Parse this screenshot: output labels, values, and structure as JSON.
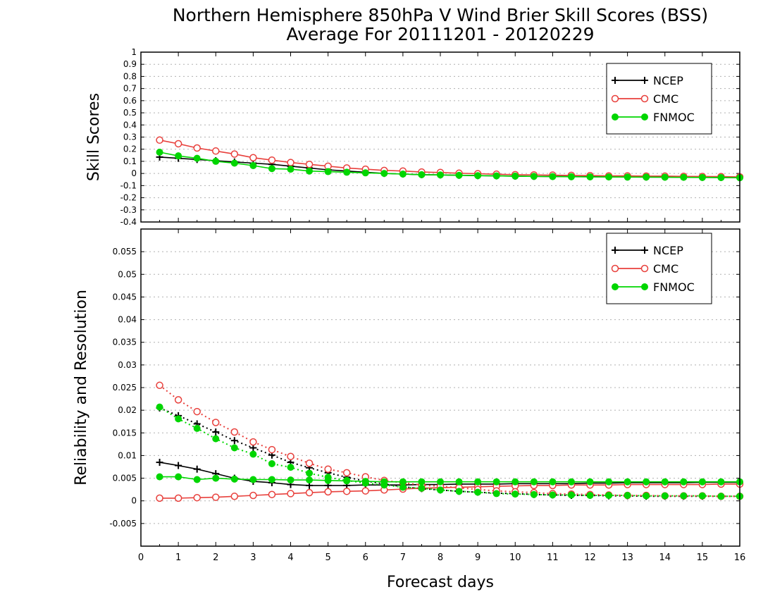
{
  "title_line1": "Northern Hemisphere 850hPa V Wind Brier Skill Scores (BSS)",
  "title_line2": "Average For 20111201 - 20120229",
  "xlabel": "Forecast days",
  "colors": {
    "NCEP": "#000000",
    "CMC": "#e8403c",
    "FNMOC": "#00d600",
    "grid": "#b0b0b0"
  },
  "chart_data": [
    {
      "type": "line",
      "ylabel": "Skill Scores",
      "xlim": [
        0,
        16
      ],
      "ylim": [
        -0.4,
        1
      ],
      "x_ticks": [
        0,
        1,
        2,
        3,
        4,
        5,
        6,
        7,
        8,
        9,
        10,
        11,
        12,
        13,
        14,
        15,
        16
      ],
      "y_ticks": [
        "-0.4",
        "-0.3",
        "-0.2",
        "-0.1",
        "0",
        "0.1",
        "0.2",
        "0.3",
        "0.4",
        "0.5",
        "0.6",
        "0.7",
        "0.8",
        "0.9",
        "1"
      ],
      "grid": true,
      "legend_position": "top-right",
      "x": [
        0.5,
        1,
        1.5,
        2,
        2.5,
        3,
        3.5,
        4,
        4.5,
        5,
        5.5,
        6,
        6.5,
        7,
        7.5,
        8,
        8.5,
        9,
        9.5,
        10,
        10.5,
        11,
        11.5,
        12,
        12.5,
        13,
        13.5,
        14,
        14.5,
        15,
        15.5,
        16
      ],
      "series": [
        {
          "name": "NCEP",
          "marker": "plus",
          "style": "solid",
          "values": [
            0.135,
            0.125,
            0.115,
            0.105,
            0.095,
            0.085,
            0.075,
            0.06,
            0.045,
            0.03,
            0.02,
            0.01,
            0.0,
            -0.005,
            -0.01,
            -0.012,
            -0.015,
            -0.018,
            -0.02,
            -0.022,
            -0.024,
            -0.025,
            -0.026,
            -0.027,
            -0.028,
            -0.029,
            -0.03,
            -0.03,
            -0.031,
            -0.032,
            -0.033,
            -0.034
          ]
        },
        {
          "name": "CMC",
          "marker": "circle-open",
          "style": "solid",
          "values": [
            0.275,
            0.245,
            0.21,
            0.185,
            0.16,
            0.13,
            0.11,
            0.09,
            0.075,
            0.06,
            0.045,
            0.035,
            0.025,
            0.02,
            0.012,
            0.008,
            0.002,
            -0.002,
            -0.006,
            -0.01,
            -0.012,
            -0.014,
            -0.016,
            -0.018,
            -0.02,
            -0.02,
            -0.022,
            -0.022,
            -0.024,
            -0.025,
            -0.026,
            -0.028
          ]
        },
        {
          "name": "FNMOC",
          "marker": "circle-filled",
          "style": "solid",
          "values": [
            0.175,
            0.145,
            0.125,
            0.1,
            0.085,
            0.065,
            0.04,
            0.035,
            0.02,
            0.015,
            0.01,
            0.005,
            0.0,
            -0.005,
            -0.01,
            -0.012,
            -0.015,
            -0.018,
            -0.02,
            -0.022,
            -0.024,
            -0.026,
            -0.027,
            -0.028,
            -0.029,
            -0.03,
            -0.03,
            -0.031,
            -0.032,
            -0.033,
            -0.034,
            -0.035
          ]
        }
      ]
    },
    {
      "type": "line",
      "ylabel": "Reliability and Resolution",
      "xlim": [
        0,
        16
      ],
      "ylim": [
        -0.01,
        0.06
      ],
      "x_ticks": [
        0,
        1,
        2,
        3,
        4,
        5,
        6,
        7,
        8,
        9,
        10,
        11,
        12,
        13,
        14,
        15,
        16
      ],
      "y_ticks": [
        "-0.005",
        "0",
        "0.005",
        "0.01",
        "0.015",
        "0.02",
        "0.025",
        "0.03",
        "0.035",
        "0.04",
        "0.045",
        "0.05",
        "0.055"
      ],
      "grid": true,
      "legend_position": "top-right",
      "x": [
        0.5,
        1,
        1.5,
        2,
        2.5,
        3,
        3.5,
        4,
        4.5,
        5,
        5.5,
        6,
        6.5,
        7,
        7.5,
        8,
        8.5,
        9,
        9.5,
        10,
        10.5,
        11,
        11.5,
        12,
        12.5,
        13,
        13.5,
        14,
        14.5,
        15,
        15.5,
        16
      ],
      "series": [
        {
          "name": "NCEP",
          "marker": "plus",
          "style": "solid",
          "values": [
            0.0085,
            0.0078,
            0.007,
            0.006,
            0.005,
            0.0043,
            0.004,
            0.0036,
            0.0034,
            0.0034,
            0.0034,
            0.0035,
            0.0035,
            0.0035,
            0.0036,
            0.0036,
            0.0037,
            0.0037,
            0.0037,
            0.0038,
            0.0038,
            0.0038,
            0.0038,
            0.0039,
            0.0039,
            0.004,
            0.004,
            0.004,
            0.004,
            0.0041,
            0.0041,
            0.0041
          ]
        },
        {
          "name": "NCEP",
          "marker": "plus",
          "style": "dotted",
          "values": [
            0.0205,
            0.0188,
            0.017,
            0.0152,
            0.0133,
            0.0117,
            0.0101,
            0.0085,
            0.0073,
            0.0062,
            0.0052,
            0.0044,
            0.0037,
            0.0031,
            0.0027,
            0.0024,
            0.0021,
            0.0019,
            0.0017,
            0.0016,
            0.0014,
            0.0013,
            0.0012,
            0.0012,
            0.0011,
            0.0011,
            0.001,
            0.001,
            0.001,
            0.001,
            0.001,
            0.001
          ]
        },
        {
          "name": "CMC",
          "marker": "circle-open",
          "style": "solid",
          "values": [
            0.0006,
            0.0006,
            0.0007,
            0.0008,
            0.001,
            0.0012,
            0.0014,
            0.0016,
            0.0018,
            0.002,
            0.0021,
            0.0022,
            0.0024,
            0.0026,
            0.0028,
            0.0029,
            0.003,
            0.0031,
            0.0032,
            0.0033,
            0.0034,
            0.0034,
            0.0035,
            0.0035,
            0.0035,
            0.0036,
            0.0036,
            0.0036,
            0.0036,
            0.0036,
            0.0037,
            0.0037
          ]
        },
        {
          "name": "CMC",
          "marker": "circle-open",
          "style": "dotted",
          "values": [
            0.0255,
            0.0223,
            0.0197,
            0.0173,
            0.0152,
            0.013,
            0.0113,
            0.0098,
            0.0083,
            0.007,
            0.0062,
            0.0053,
            0.0045,
            0.004,
            0.0035,
            0.0032,
            0.0029,
            0.0025,
            0.0022,
            0.002,
            0.0018,
            0.0016,
            0.0015,
            0.0014,
            0.0013,
            0.0012,
            0.0012,
            0.0011,
            0.0011,
            0.0011,
            0.001,
            0.001
          ]
        },
        {
          "name": "FNMOC",
          "marker": "circle-filled",
          "style": "solid",
          "values": [
            0.0053,
            0.0053,
            0.0047,
            0.005,
            0.0048,
            0.0047,
            0.0047,
            0.0046,
            0.0046,
            0.0045,
            0.0044,
            0.0043,
            0.0042,
            0.0042,
            0.0042,
            0.0042,
            0.0042,
            0.0042,
            0.0042,
            0.0042,
            0.0042,
            0.0042,
            0.0042,
            0.0042,
            0.0042,
            0.0042,
            0.0042,
            0.0042,
            0.0042,
            0.0042,
            0.0042,
            0.0042
          ]
        },
        {
          "name": "FNMOC",
          "marker": "circle-filled",
          "style": "dotted",
          "values": [
            0.0207,
            0.0181,
            0.016,
            0.0137,
            0.0117,
            0.0103,
            0.0082,
            0.0074,
            0.0061,
            0.0052,
            0.0045,
            0.0039,
            0.0035,
            0.003,
            0.0028,
            0.0024,
            0.0021,
            0.0019,
            0.0016,
            0.0015,
            0.0014,
            0.0013,
            0.0013,
            0.0012,
            0.0012,
            0.0012,
            0.0011,
            0.0011,
            0.0011,
            0.0011,
            0.001,
            0.001
          ]
        }
      ]
    }
  ]
}
